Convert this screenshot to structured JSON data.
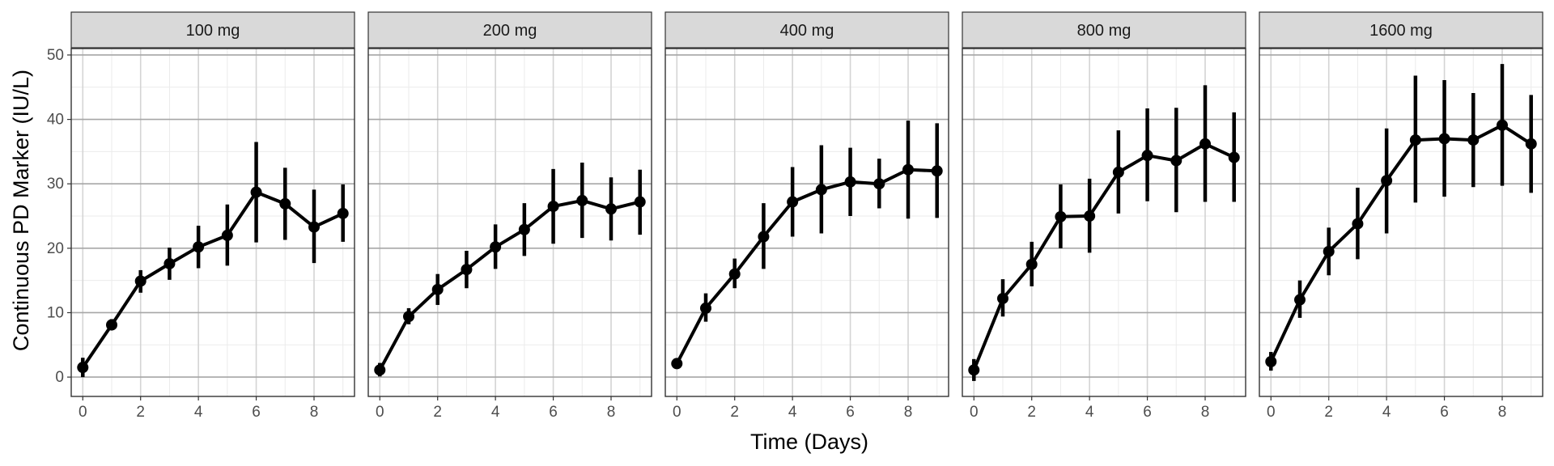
{
  "chart_data": {
    "type": "line",
    "xlabel": "Time (Days)",
    "ylabel": "Continuous PD Marker (IU/L)",
    "xlim": [
      -0.4,
      9.4
    ],
    "ylim": [
      -3,
      51
    ],
    "x_ticks": [
      0,
      2,
      4,
      6,
      8
    ],
    "y_ticks": [
      0,
      10,
      20,
      30,
      40,
      50
    ],
    "x_tick_labels": [
      "0",
      "2",
      "4",
      "6",
      "8"
    ],
    "y_tick_labels": [
      "0",
      "10",
      "20",
      "30",
      "40",
      "50"
    ],
    "grid": true,
    "facets": [
      {
        "label": "100 mg",
        "x": [
          0,
          1,
          2,
          3,
          4,
          5,
          6,
          7,
          8,
          9
        ],
        "y": [
          1.5,
          8.1,
          14.9,
          17.6,
          20.2,
          22.0,
          28.7,
          26.9,
          23.3,
          25.4
        ],
        "err_low": [
          0.0,
          7.3,
          13.1,
          15.1,
          16.9,
          17.3,
          20.9,
          21.3,
          17.7,
          21.0
        ],
        "err_high": [
          3.0,
          9.0,
          16.6,
          20.1,
          23.5,
          26.8,
          36.5,
          32.5,
          29.1,
          29.9
        ]
      },
      {
        "label": "200 mg",
        "x": [
          0,
          1,
          2,
          3,
          4,
          5,
          6,
          7,
          8,
          9
        ],
        "y": [
          1.1,
          9.4,
          13.6,
          16.7,
          20.2,
          22.9,
          26.5,
          27.4,
          26.1,
          27.2
        ],
        "err_low": [
          0.1,
          8.2,
          11.2,
          13.8,
          16.8,
          18.8,
          20.7,
          21.6,
          21.2,
          22.1
        ],
        "err_high": [
          2.2,
          10.7,
          16.0,
          19.6,
          23.7,
          27.0,
          32.3,
          33.3,
          31.0,
          32.2
        ]
      },
      {
        "label": "400 mg",
        "x": [
          0,
          1,
          2,
          3,
          4,
          5,
          6,
          7,
          8,
          9
        ],
        "y": [
          2.1,
          10.7,
          16.0,
          21.8,
          27.2,
          29.1,
          30.3,
          30.0,
          32.2,
          32.0
        ],
        "err_low": [
          1.9,
          8.6,
          13.8,
          16.8,
          21.8,
          22.3,
          25.0,
          26.2,
          24.6,
          24.7
        ],
        "err_high": [
          2.4,
          13.0,
          18.4,
          27.0,
          32.6,
          36.0,
          35.6,
          33.9,
          39.8,
          39.4
        ]
      },
      {
        "label": "800 mg",
        "x": [
          0,
          1,
          2,
          3,
          4,
          5,
          6,
          7,
          8,
          9
        ],
        "y": [
          1.1,
          12.2,
          17.5,
          24.9,
          25.0,
          31.8,
          34.4,
          33.6,
          36.2,
          34.1
        ],
        "err_low": [
          -0.6,
          9.4,
          14.1,
          20.0,
          19.3,
          25.4,
          27.3,
          25.6,
          27.2,
          27.2
        ],
        "err_high": [
          2.8,
          15.2,
          21.0,
          29.9,
          30.8,
          38.3,
          41.7,
          41.8,
          45.3,
          41.1
        ]
      },
      {
        "label": "1600 mg",
        "x": [
          0,
          1,
          2,
          3,
          4,
          5,
          6,
          7,
          8,
          9
        ],
        "y": [
          2.4,
          12.0,
          19.5,
          23.8,
          30.5,
          36.8,
          37.0,
          36.8,
          39.1,
          36.2
        ],
        "err_low": [
          1.0,
          9.2,
          15.8,
          18.3,
          22.3,
          27.1,
          28.0,
          29.5,
          29.7,
          28.6
        ],
        "err_high": [
          3.9,
          15.0,
          23.2,
          29.4,
          38.6,
          46.8,
          46.1,
          44.1,
          48.6,
          43.8
        ]
      }
    ]
  }
}
